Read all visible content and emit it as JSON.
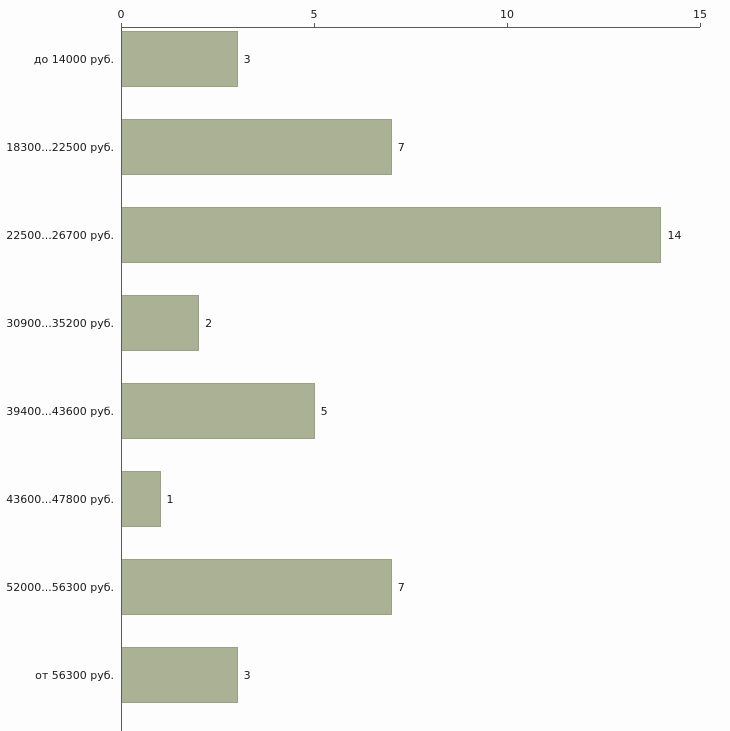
{
  "chart_data": {
    "type": "bar",
    "orientation": "horizontal",
    "title": "",
    "xlabel": "",
    "ylabel": "",
    "categories": [
      "до 14000 руб.",
      "18300...22500 руб.",
      "22500...26700 руб.",
      "30900...35200 руб.",
      "39400...43600 руб.",
      "43600...47800 руб.",
      "52000...56300 руб.",
      "от 56300 руб."
    ],
    "values": [
      3,
      7,
      14,
      2,
      5,
      1,
      7,
      3
    ],
    "xlim": [
      0,
      15
    ],
    "xticks": [
      0,
      5,
      10,
      15
    ],
    "grid": false,
    "legend": false,
    "colors": {
      "bar_fill": "#abb194",
      "bar_border": "#9aa183",
      "axis_line": "#5a5a5a",
      "text": "#1a1a1a",
      "background": "#fdfdfd"
    }
  }
}
